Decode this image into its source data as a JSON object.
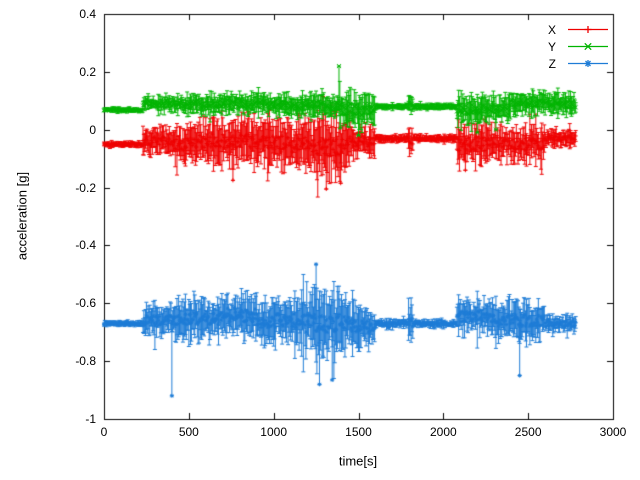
{
  "figure": {
    "background": "#ffffff",
    "border_color": "#000000",
    "text_color": "#000000"
  },
  "chart_data": {
    "type": "line",
    "style": "errorbars",
    "title": "",
    "xlabel": "time[s]",
    "ylabel": "acceleration [g]",
    "xlim": [
      0,
      3000
    ],
    "ylim": [
      -1,
      0.4
    ],
    "xticks": [
      0,
      500,
      1000,
      1500,
      2000,
      2500,
      3000
    ],
    "xtick_labels": [
      "0",
      "500",
      "1000",
      "1500",
      "2000",
      "2500",
      "3000"
    ],
    "yticks": [
      -1,
      -0.8,
      -0.6,
      -0.4,
      -0.2,
      0,
      0.2,
      0.4
    ],
    "ytick_labels": [
      "-1",
      "-0.8",
      "-0.6",
      "-0.4",
      "-0.2",
      "0",
      "0.2",
      "0.4"
    ],
    "grid": false,
    "legend_position": "top-right-inside",
    "x_data_range": [
      0,
      2780
    ],
    "series": [
      {
        "name": "X",
        "color": "#ee0000",
        "marker": "plus",
        "baseline": -0.05,
        "segments": [
          {
            "x0": 0,
            "x1": 230,
            "mean": -0.05,
            "jitter": 0.004,
            "spread": 0.01
          },
          {
            "x0": 230,
            "x1": 420,
            "mean": -0.04,
            "jitter": 0.018,
            "spread": 0.05
          },
          {
            "x0": 420,
            "x1": 560,
            "mean": -0.05,
            "jitter": 0.022,
            "spread": 0.065
          },
          {
            "x0": 560,
            "x1": 1000,
            "mean": -0.04,
            "jitter": 0.025,
            "spread": 0.08
          },
          {
            "x0": 1000,
            "x1": 1250,
            "mean": -0.05,
            "jitter": 0.028,
            "spread": 0.09
          },
          {
            "x0": 1250,
            "x1": 1450,
            "mean": -0.06,
            "jitter": 0.03,
            "spread": 0.1
          },
          {
            "x0": 1450,
            "x1": 1600,
            "mean": -0.04,
            "jitter": 0.018,
            "spread": 0.055
          },
          {
            "x0": 1600,
            "x1": 1795,
            "mean": -0.03,
            "jitter": 0.005,
            "spread": 0.013
          },
          {
            "x0": 1795,
            "x1": 1825,
            "mean": -0.04,
            "jitter": 0.013,
            "spread": 0.045
          },
          {
            "x0": 1825,
            "x1": 2080,
            "mean": -0.03,
            "jitter": 0.005,
            "spread": 0.013
          },
          {
            "x0": 2080,
            "x1": 2350,
            "mean": -0.05,
            "jitter": 0.024,
            "spread": 0.075
          },
          {
            "x0": 2350,
            "x1": 2600,
            "mean": -0.05,
            "jitter": 0.02,
            "spread": 0.06
          },
          {
            "x0": 2600,
            "x1": 2780,
            "mean": -0.03,
            "jitter": 0.01,
            "spread": 0.03
          }
        ],
        "spikes": [
          [
            760,
            -0.175
          ],
          [
            1290,
            0.115
          ],
          [
            1310,
            -0.205
          ],
          [
            1395,
            -0.185
          ],
          [
            2130,
            -0.14
          ]
        ]
      },
      {
        "name": "Y",
        "color": "#00b400",
        "marker": "cross",
        "baseline": 0.08,
        "segments": [
          {
            "x0": 0,
            "x1": 230,
            "mean": 0.068,
            "jitter": 0.004,
            "spread": 0.008
          },
          {
            "x0": 230,
            "x1": 500,
            "mean": 0.09,
            "jitter": 0.01,
            "spread": 0.028
          },
          {
            "x0": 500,
            "x1": 1000,
            "mean": 0.09,
            "jitter": 0.013,
            "spread": 0.035
          },
          {
            "x0": 1000,
            "x1": 1380,
            "mean": 0.085,
            "jitter": 0.014,
            "spread": 0.04
          },
          {
            "x0": 1380,
            "x1": 1600,
            "mean": 0.07,
            "jitter": 0.02,
            "spread": 0.06
          },
          {
            "x0": 1600,
            "x1": 1795,
            "mean": 0.08,
            "jitter": 0.004,
            "spread": 0.01
          },
          {
            "x0": 1795,
            "x1": 1825,
            "mean": 0.088,
            "jitter": 0.01,
            "spread": 0.035
          },
          {
            "x0": 1825,
            "x1": 2080,
            "mean": 0.08,
            "jitter": 0.004,
            "spread": 0.01
          },
          {
            "x0": 2080,
            "x1": 2400,
            "mean": 0.07,
            "jitter": 0.018,
            "spread": 0.05
          },
          {
            "x0": 2400,
            "x1": 2780,
            "mean": 0.09,
            "jitter": 0.014,
            "spread": 0.04
          }
        ],
        "spikes": [
          [
            1385,
            0.22
          ],
          [
            1500,
            -0.02
          ],
          [
            2200,
            -0.01
          ],
          [
            2310,
            0.0
          ]
        ]
      },
      {
        "name": "Z",
        "color": "#1e7cd6",
        "marker": "asterisk",
        "baseline": -0.67,
        "segments": [
          {
            "x0": 0,
            "x1": 230,
            "mean": -0.67,
            "jitter": 0.004,
            "spread": 0.01
          },
          {
            "x0": 230,
            "x1": 420,
            "mean": -0.66,
            "jitter": 0.018,
            "spread": 0.055
          },
          {
            "x0": 420,
            "x1": 700,
            "mean": -0.655,
            "jitter": 0.022,
            "spread": 0.075
          },
          {
            "x0": 700,
            "x1": 900,
            "mean": -0.64,
            "jitter": 0.024,
            "spread": 0.08
          },
          {
            "x0": 900,
            "x1": 1150,
            "mean": -0.66,
            "jitter": 0.024,
            "spread": 0.08
          },
          {
            "x0": 1150,
            "x1": 1450,
            "mean": -0.67,
            "jitter": 0.032,
            "spread": 0.11
          },
          {
            "x0": 1450,
            "x1": 1600,
            "mean": -0.68,
            "jitter": 0.022,
            "spread": 0.075
          },
          {
            "x0": 1600,
            "x1": 1795,
            "mean": -0.67,
            "jitter": 0.005,
            "spread": 0.014
          },
          {
            "x0": 1795,
            "x1": 1825,
            "mean": -0.67,
            "jitter": 0.018,
            "spread": 0.08
          },
          {
            "x0": 1825,
            "x1": 2080,
            "mean": -0.67,
            "jitter": 0.005,
            "spread": 0.014
          },
          {
            "x0": 2080,
            "x1": 2300,
            "mean": -0.645,
            "jitter": 0.02,
            "spread": 0.065
          },
          {
            "x0": 2300,
            "x1": 2600,
            "mean": -0.66,
            "jitter": 0.02,
            "spread": 0.065
          },
          {
            "x0": 2600,
            "x1": 2780,
            "mean": -0.67,
            "jitter": 0.011,
            "spread": 0.028
          }
        ],
        "spikes": [
          [
            400,
            -0.92
          ],
          [
            1250,
            -0.465
          ],
          [
            1270,
            -0.88
          ],
          [
            1345,
            -0.865
          ],
          [
            2450,
            -0.85
          ]
        ]
      }
    ]
  },
  "legend": {
    "entries": [
      {
        "label": "X",
        "marker_icon": "plus-marker-icon"
      },
      {
        "label": "Y",
        "marker_icon": "cross-marker-icon"
      },
      {
        "label": "Z",
        "marker_icon": "asterisk-marker-icon"
      }
    ]
  }
}
